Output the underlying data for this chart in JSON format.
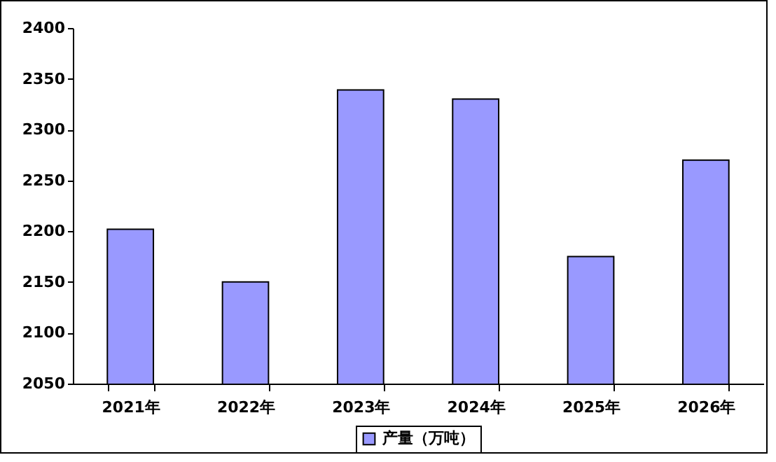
{
  "chart_data": {
    "type": "bar",
    "categories": [
      "2021年",
      "2022年",
      "2023年",
      "2024年",
      "2025年",
      "2026年"
    ],
    "series": [
      {
        "name": "产量（万吨）",
        "color": "#9999ff",
        "values": [
          2202,
          2150,
          2339,
          2330,
          2175,
          2270
        ]
      }
    ],
    "ylim": [
      2050,
      2400
    ],
    "yticks": [
      2050,
      2100,
      2150,
      2200,
      2250,
      2300,
      2350,
      2400
    ],
    "grid": false,
    "legend": "bottom"
  }
}
